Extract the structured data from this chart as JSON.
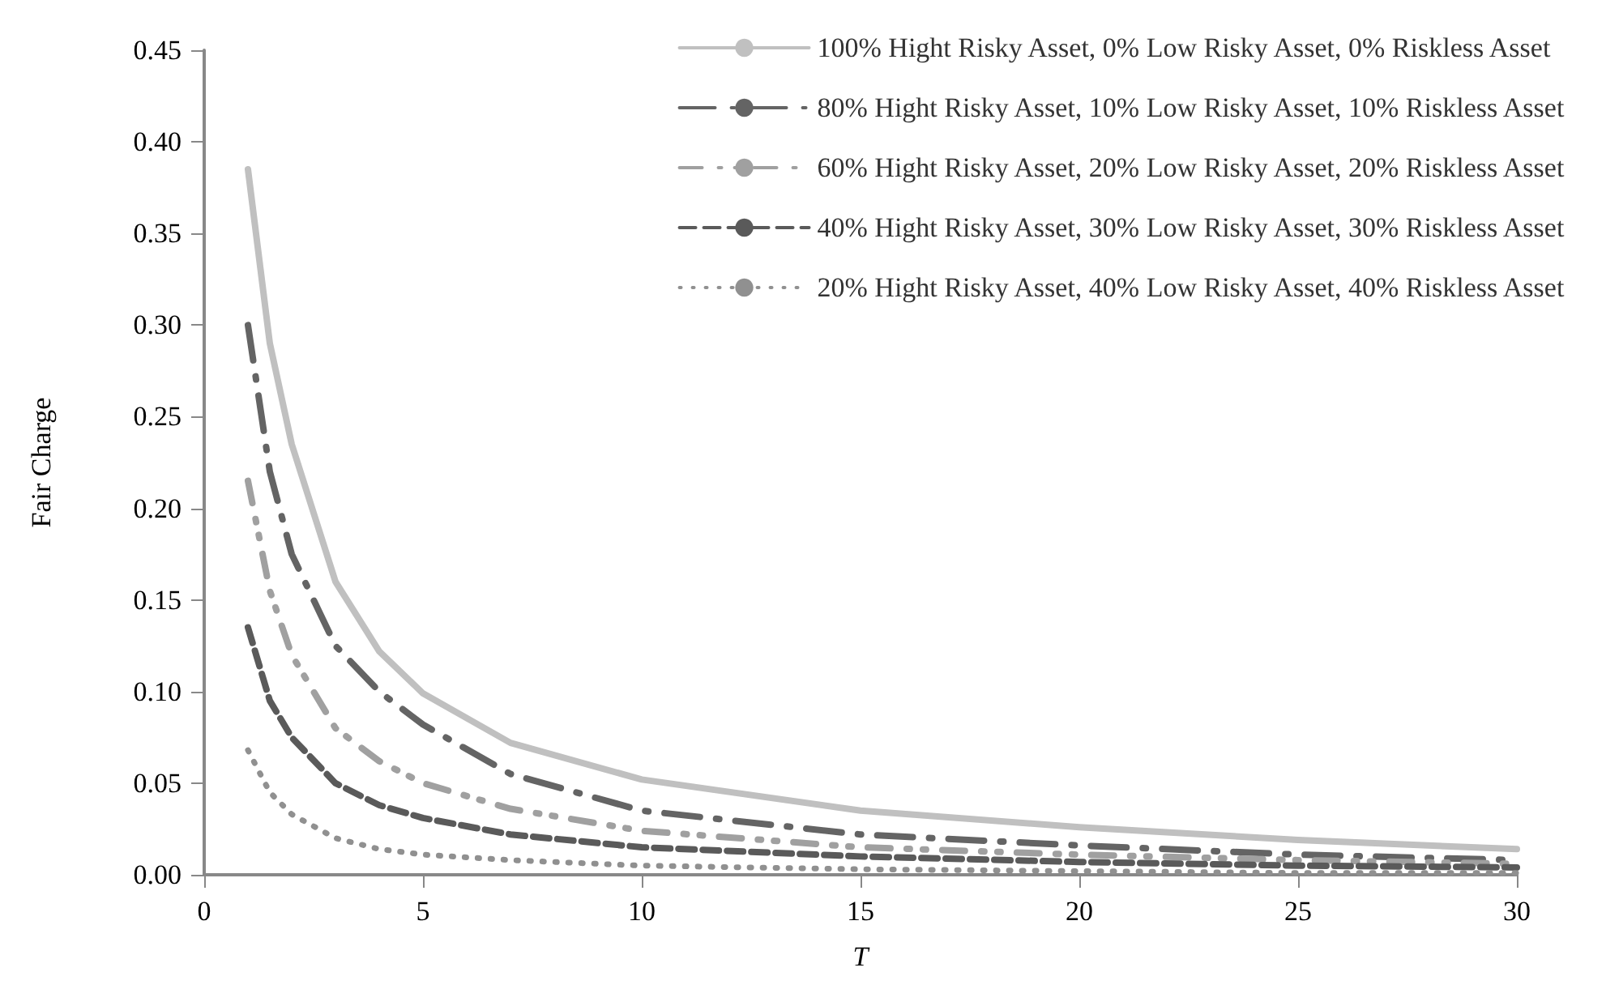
{
  "chart_data": {
    "type": "line",
    "xlabel": "T",
    "ylabel": "Fair Charge",
    "xlim": [
      0,
      30
    ],
    "xticks": [
      0,
      5,
      10,
      15,
      20,
      25,
      30
    ],
    "ylim": [
      0,
      0.45
    ],
    "yticks": [
      {
        "value": 0,
        "label": "0.00"
      },
      {
        "value": 0.05,
        "label": "0.05"
      },
      {
        "value": 0.1,
        "label": "0.10"
      },
      {
        "value": 0.15,
        "label": "0.15"
      },
      {
        "value": 0.2,
        "label": "0.20"
      },
      {
        "value": 0.25,
        "label": "0.25"
      },
      {
        "value": 0.3,
        "label": "0.30"
      },
      {
        "value": 0.35,
        "label": "0.35"
      },
      {
        "value": 0.4,
        "label": "0.40"
      },
      {
        "value": 0.45,
        "label": "0.45"
      }
    ],
    "x": [
      1,
      1.5,
      2,
      3,
      4,
      5,
      7,
      10,
      15,
      20,
      25,
      30
    ],
    "grid": false,
    "legend": "top right",
    "marker": "none",
    "series": [
      {
        "name": "100% Hight Risky Asset, 0% Low Risky Asset, 0% Riskless Asset",
        "color": "#c0c0c0",
        "line_style": "solid",
        "values": [
          0.385,
          0.29,
          0.235,
          0.16,
          0.122,
          0.099,
          0.072,
          0.052,
          0.035,
          0.026,
          0.019,
          0.014
        ]
      },
      {
        "name": "80% Hight Risky Asset, 10% Low Risky Asset, 10% Riskless Asset",
        "color": "#646464",
        "line_style": "dashed",
        "values": [
          0.3,
          0.22,
          0.175,
          0.125,
          0.1,
          0.082,
          0.055,
          0.035,
          0.022,
          0.016,
          0.011,
          0.008
        ]
      },
      {
        "name": "60% Hight Risky Asset, 20% Low Risky Asset, 20% Riskless Asset",
        "color": "#a0a0a0",
        "line_style": "dashed",
        "values": [
          0.215,
          0.155,
          0.12,
          0.08,
          0.062,
          0.05,
          0.036,
          0.024,
          0.015,
          0.011,
          0.008,
          0.006
        ]
      },
      {
        "name": "40% Hight Risky Asset, 30% Low Risky Asset, 30% Riskless Asset",
        "color": "#5a5a5a",
        "line_style": "dashed",
        "values": [
          0.135,
          0.095,
          0.075,
          0.05,
          0.038,
          0.031,
          0.022,
          0.015,
          0.01,
          0.007,
          0.005,
          0.004
        ]
      },
      {
        "name": "20% Hight Risky Asset, 40% Low Risky Asset, 40% Riskless Asset",
        "color": "#909090",
        "line_style": "dotted",
        "values": [
          0.068,
          0.045,
          0.033,
          0.02,
          0.014,
          0.011,
          0.008,
          0.005,
          0.003,
          0.002,
          0.001,
          0.001
        ]
      }
    ]
  }
}
